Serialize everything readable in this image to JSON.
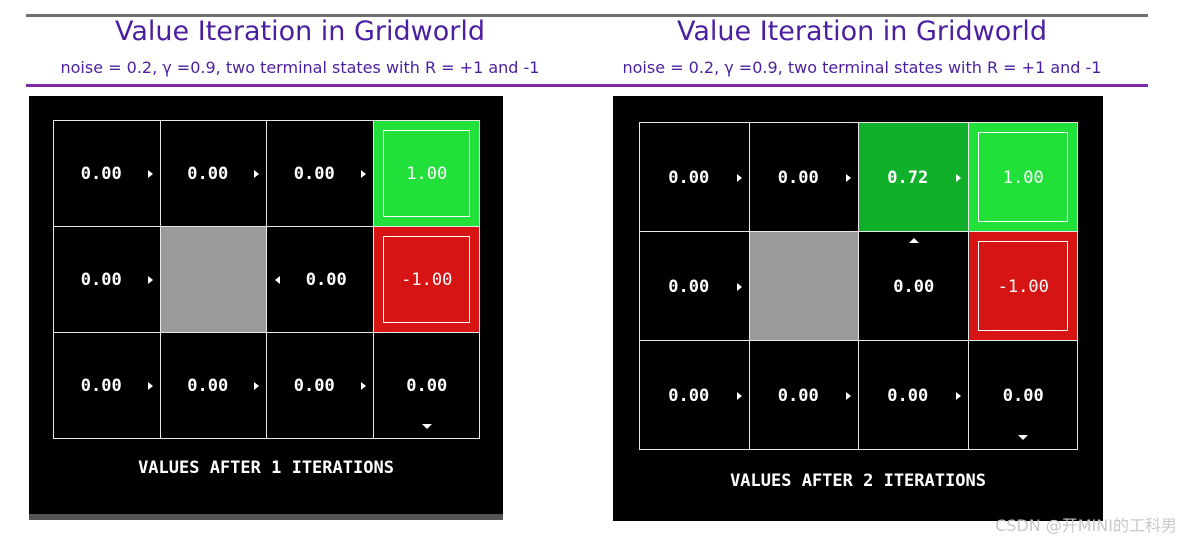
{
  "panels": [
    {
      "title": "Value Iteration in Gridworld",
      "subtitle": "noise = 0.2, γ =0.9, two terminal states with R = +1 and -1",
      "caption": "VALUES AFTER 1 ITERATIONS",
      "grid": [
        [
          {
            "value": "0.00",
            "arrow": "right",
            "style": "black"
          },
          {
            "value": "0.00",
            "arrow": "right",
            "style": "black"
          },
          {
            "value": "0.00",
            "arrow": "right",
            "style": "black"
          },
          {
            "value": "1.00",
            "arrow": "",
            "style": "green-bright",
            "terminal": true
          }
        ],
        [
          {
            "value": "0.00",
            "arrow": "right",
            "style": "black"
          },
          {
            "value": "",
            "arrow": "",
            "style": "wall"
          },
          {
            "value": "0.00",
            "arrow": "left",
            "style": "black"
          },
          {
            "value": "-1.00",
            "arrow": "",
            "style": "red",
            "terminal": true
          }
        ],
        [
          {
            "value": "0.00",
            "arrow": "right",
            "style": "black"
          },
          {
            "value": "0.00",
            "arrow": "right",
            "style": "black"
          },
          {
            "value": "0.00",
            "arrow": "right",
            "style": "black"
          },
          {
            "value": "0.00",
            "arrow": "down",
            "style": "black"
          }
        ]
      ]
    },
    {
      "title": "Value Iteration in Gridworld",
      "subtitle": "noise = 0.2, γ =0.9, two terminal states with R = +1 and -1",
      "caption": "VALUES AFTER 2 ITERATIONS",
      "grid": [
        [
          {
            "value": "0.00",
            "arrow": "right",
            "style": "black"
          },
          {
            "value": "0.00",
            "arrow": "right",
            "style": "black"
          },
          {
            "value": "0.72",
            "arrow": "right",
            "style": "green-mid"
          },
          {
            "value": "1.00",
            "arrow": "",
            "style": "green-bright",
            "terminal": true
          }
        ],
        [
          {
            "value": "0.00",
            "arrow": "right",
            "style": "black"
          },
          {
            "value": "",
            "arrow": "",
            "style": "wall"
          },
          {
            "value": "0.00",
            "arrow": "up",
            "style": "black"
          },
          {
            "value": "-1.00",
            "arrow": "",
            "style": "red",
            "terminal": true
          }
        ],
        [
          {
            "value": "0.00",
            "arrow": "right",
            "style": "black"
          },
          {
            "value": "0.00",
            "arrow": "right",
            "style": "black"
          },
          {
            "value": "0.00",
            "arrow": "right",
            "style": "black"
          },
          {
            "value": "0.00",
            "arrow": "down",
            "style": "black"
          }
        ]
      ]
    }
  ],
  "watermark": "CSDN @开MINI的工科男",
  "colors": {
    "title": "#4b1fa0",
    "rule": "#7b2aa8",
    "green_bright": "#22e03a",
    "green_mid": "#10b02a",
    "red": "#d61414",
    "wall": "#9a9a9a"
  }
}
